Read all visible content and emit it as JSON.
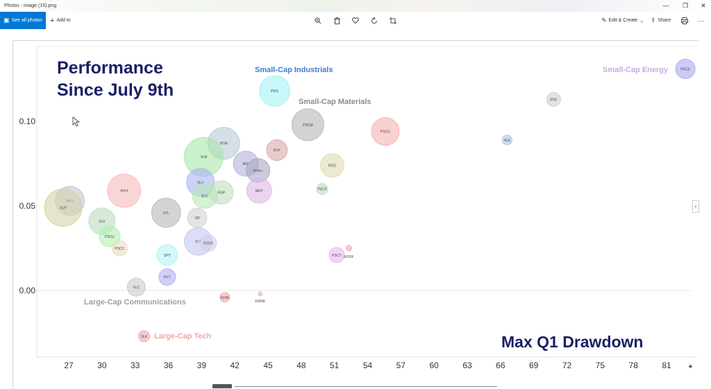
{
  "window": {
    "title": "Photos - image (15).png",
    "minimize": "—",
    "restore": "❐",
    "close": "✕"
  },
  "toolbar": {
    "see_all_photos": "See all photos",
    "add_to": "Add to",
    "edit_create": "Edit & Create",
    "share": "Share",
    "more": "···",
    "icons": [
      "zoom-in-icon",
      "delete-icon",
      "favorite-icon",
      "rotate-icon",
      "crop-icon"
    ]
  },
  "chart_data": {
    "type": "scatter",
    "title": "Performance Since July 9th",
    "xlabel": "Max Q1 Drawdown",
    "ylabel": "",
    "xlim": [
      24.5,
      84
    ],
    "ylim": [
      -0.033,
      0.145
    ],
    "x_ticks": [
      "27",
      "30",
      "33",
      "36",
      "39",
      "42",
      "45",
      "48",
      "51",
      "54",
      "57",
      "60",
      "63",
      "66",
      "69",
      "72",
      "75",
      "78",
      "81"
    ],
    "y_ticks": [
      "0.10",
      "0.05",
      "0.00"
    ],
    "points": [
      {
        "label": "PSCE",
        "x": 82.7,
        "y": 0.131,
        "r": 14,
        "color": "#a9a9f0"
      },
      {
        "label": "RYE",
        "x": 70.8,
        "y": 0.113,
        "r": 10,
        "color": "#cfcfcf"
      },
      {
        "label": "XLE",
        "x": 66.6,
        "y": 0.089,
        "r": 7,
        "color": "#a8c4e8"
      },
      {
        "label": "PSCI",
        "x": 45.6,
        "y": 0.118,
        "r": 22,
        "color": "#a3f2f7"
      },
      {
        "label": "PSCM",
        "x": 48.6,
        "y": 0.098,
        "r": 23,
        "color": "#b5b5b5"
      },
      {
        "label": "PSCD",
        "x": 55.6,
        "y": 0.094,
        "r": 20,
        "color": "#f6b3b0"
      },
      {
        "label": "RYF",
        "x": 45.8,
        "y": 0.083,
        "r": 15,
        "color": "#dba8ac"
      },
      {
        "label": "RCD",
        "x": 50.8,
        "y": 0.074,
        "r": 17,
        "color": "#dedbb4"
      },
      {
        "label": "RTM",
        "x": 41.0,
        "y": 0.087,
        "r": 23,
        "color": "#b9c9d6"
      },
      {
        "label": "XLB",
        "x": 39.2,
        "y": 0.079,
        "r": 28,
        "color": "#a6e8a6"
      },
      {
        "label": "RGI",
        "x": 43.0,
        "y": 0.075,
        "r": 18,
        "color": "#b0b0d8"
      },
      {
        "label": "RHS+",
        "x": 44.1,
        "y": 0.071,
        "r": 17,
        "color": "#a8a8c6"
      },
      {
        "label": "MDY",
        "x": 44.2,
        "y": 0.059,
        "r": 18,
        "color": "#dcb8e4"
      },
      {
        "label": "PSCF",
        "x": 49.9,
        "y": 0.06,
        "r": 8,
        "color": "#bde0bd"
      },
      {
        "label": "XLU",
        "x": 38.9,
        "y": 0.064,
        "r": 20,
        "color": "#acb3f3"
      },
      {
        "label": "RSP",
        "x": 40.8,
        "y": 0.058,
        "r": 17,
        "color": "#bfe0bf"
      },
      {
        "label": "BVU",
        "x": 39.3,
        "y": 0.056,
        "r": 18,
        "color": "#b6e7b6"
      },
      {
        "label": "RYH",
        "x": 32.0,
        "y": 0.059,
        "r": 24,
        "color": "#f7b9b9"
      },
      {
        "label": "RHS",
        "x": 27.1,
        "y": 0.053,
        "r": 21,
        "color": "#c2c2d8"
      },
      {
        "label": "XLP",
        "x": 26.5,
        "y": 0.049,
        "r": 27,
        "color": "#d4d4a8"
      },
      {
        "label": "XTL",
        "x": 35.8,
        "y": 0.046,
        "r": 21,
        "color": "#b8b8b8"
      },
      {
        "label": "IJR",
        "x": 38.6,
        "y": 0.043,
        "r": 14,
        "color": "#d2d2d2"
      },
      {
        "label": "XLV",
        "x": 30.0,
        "y": 0.041,
        "r": 19,
        "color": "#bcdcbc"
      },
      {
        "label": "PSCU",
        "x": 30.7,
        "y": 0.032,
        "r": 15,
        "color": "#b0f0b0"
      },
      {
        "label": "PSCC",
        "x": 31.6,
        "y": 0.025,
        "r": 11,
        "color": "#e8e0c0"
      },
      {
        "label": "XLY",
        "x": 38.7,
        "y": 0.029,
        "r": 20,
        "color": "#c2c8f4"
      },
      {
        "label": "PSCH",
        "x": 39.6,
        "y": 0.028,
        "r": 12,
        "color": "#d0d0e8"
      },
      {
        "label": "SPY",
        "x": 35.9,
        "y": 0.021,
        "r": 15,
        "color": "#b3f4f6"
      },
      {
        "label": "RYT",
        "x": 35.9,
        "y": 0.008,
        "r": 12,
        "color": "#b0b0f0"
      },
      {
        "label": "XLC",
        "x": 33.1,
        "y": 0.002,
        "r": 13,
        "color": "#c8cbcb"
      },
      {
        "label": "PSCT",
        "x": 51.2,
        "y": 0.021,
        "r": 11,
        "color": "#e6b9e6"
      },
      {
        "label": "ROOF",
        "x": 52.3,
        "y": 0.025,
        "r": 4,
        "color": "#f0a8a8"
      },
      {
        "label": "XLRE",
        "x": 41.1,
        "y": -0.004,
        "r": 7,
        "color": "#f3a9a9"
      },
      {
        "label": "EWRE",
        "x": 44.3,
        "y": -0.002,
        "r": 3,
        "color": "#e8b0c0"
      },
      {
        "label": "XLK",
        "x": 33.8,
        "y": -0.027,
        "r": 8,
        "color": "#f0a8a8"
      }
    ],
    "annotations": [
      {
        "text": "Small-Cap Industrials",
        "color": "#3b7dd0"
      },
      {
        "text": "Small-Cap Materials",
        "color": "#8a8a8a"
      },
      {
        "text": "Small-Cap Energy",
        "color": "#c7a9e0"
      },
      {
        "text": "Large-Cap Communications",
        "color": "#a0a0a0"
      },
      {
        "text": "Large-Cap Tech",
        "color": "#f2a4a4"
      }
    ],
    "title_color": "#1a1f66",
    "grid": false
  }
}
